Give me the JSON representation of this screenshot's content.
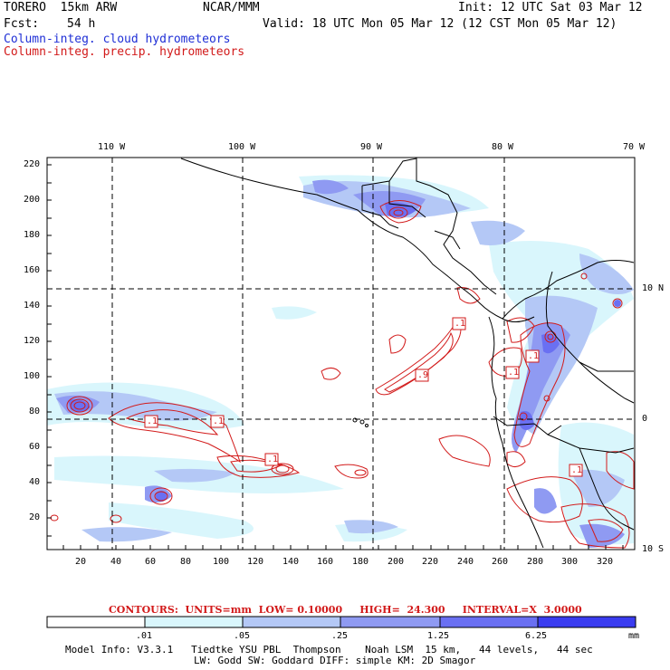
{
  "header": {
    "model": "TORERO  15km ARW",
    "org": "NCAR/MMM",
    "init": "Init: 12 UTC Sat 03 Mar 12",
    "fcst_label": "Fcst:",
    "fcst_value": "54 h",
    "valid": "Valid: 18 UTC Mon 05 Mar 12 (12 CST Mon 05 Mar 12)",
    "legend_cloud": "Column-integ. cloud hydrometeors",
    "legend_precip": "Column-integ. precip. hydrometeors"
  },
  "map": {
    "lon_labels": [
      "110 W",
      "100 W",
      "90 W",
      "80 W",
      "70 W"
    ],
    "lat_labels_right": [
      "10 N",
      "0",
      "10 S"
    ],
    "y_ticks": [
      "220",
      "200",
      "180",
      "160",
      "140",
      "120",
      "100",
      "80",
      "60",
      "40",
      "20"
    ],
    "x_ticks": [
      "20",
      "40",
      "60",
      "80",
      "100",
      "120",
      "140",
      "160",
      "180",
      "200",
      "220",
      "240",
      "260",
      "280",
      "300",
      "320"
    ],
    "contour_labels": [
      ".1",
      ".1",
      ".1",
      ".9",
      ".1",
      ".1",
      ".1",
      ".1"
    ]
  },
  "contour_info": "CONTOURS:  UNITS=mm  LOW= 0.10000     HIGH=  24.300     INTERVAL=X  3.0000",
  "colorbar": {
    "labels": [
      ".01",
      ".05",
      ".25",
      "1.25",
      "6.25"
    ],
    "units": "mm",
    "colors": [
      "#ffffff",
      "#d9f6fc",
      "#b4c8f6",
      "#8f9af2",
      "#6a70f2",
      "#3a3cf0"
    ]
  },
  "model_info": {
    "line1": "Model Info: V3.3.1   Tiedtke YSU PBL  Thompson    Noah LSM  15 km,   44 levels,   44 sec",
    "line2": "LW: Godd SW: Goddard DIFF: simple KM: 2D Smagor"
  }
}
